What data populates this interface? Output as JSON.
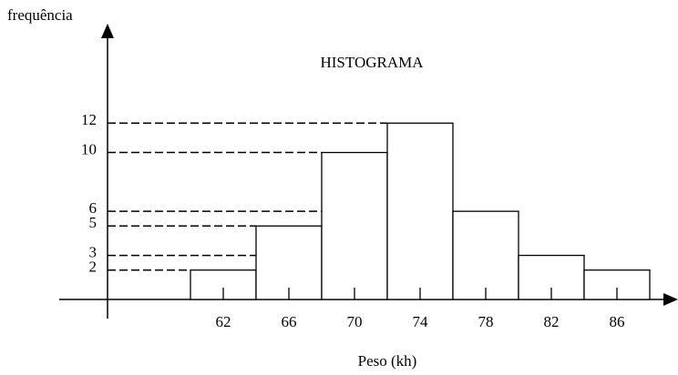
{
  "chart_data": {
    "type": "histogram",
    "title": "HISTOGRAMA",
    "xlabel": "Peso (kh)",
    "ylabel": "frequência",
    "bins": [
      60,
      64,
      68,
      72,
      76,
      80,
      84,
      88
    ],
    "values": [
      2,
      5,
      10,
      12,
      6,
      3,
      2
    ],
    "xlim": [
      52,
      89.5
    ],
    "ylim": [
      -1.3,
      17.9
    ],
    "xticks": [
      62,
      66,
      70,
      74,
      78,
      82,
      86
    ],
    "yticks": [
      2,
      3,
      5,
      6,
      10,
      12
    ],
    "grid": true,
    "color": "#ffffff"
  }
}
